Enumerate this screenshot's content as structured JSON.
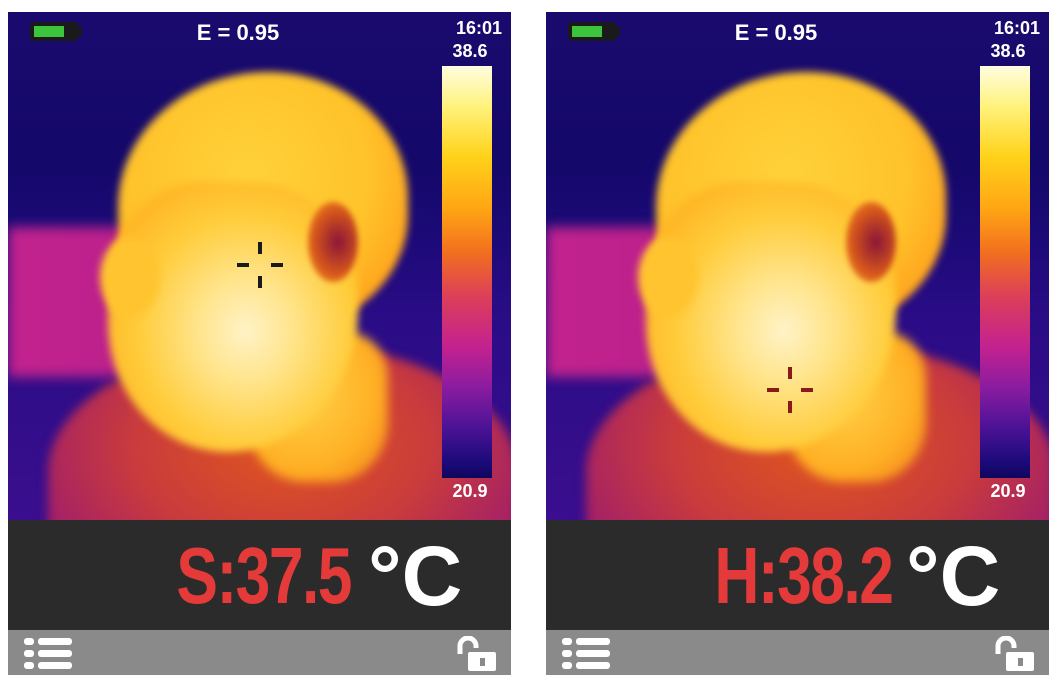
{
  "screens": [
    {
      "emissivity": "E = 0.95",
      "time": "16:01",
      "scale_max": "38.6",
      "scale_min": "20.9",
      "reading": "S:37.5",
      "unit": "°C",
      "battery_level": 0.75,
      "crosshair_color": "#1a1a1a"
    },
    {
      "emissivity": "E = 0.95",
      "time": "16:01",
      "scale_max": "38.6",
      "scale_min": "20.9",
      "reading": "H:38.2",
      "unit": "°C",
      "battery_level": 0.75,
      "crosshair_color": "#8a1a1a"
    }
  ],
  "colors": {
    "reading_red": "#e43a3a",
    "battery_green": "#3cc43c",
    "panel_dark": "#2b2b2b",
    "bar_gray": "#8a8a8a"
  },
  "icons": {
    "menu": "menu-list-icon",
    "lock": "unlock-icon",
    "battery": "battery-icon"
  }
}
